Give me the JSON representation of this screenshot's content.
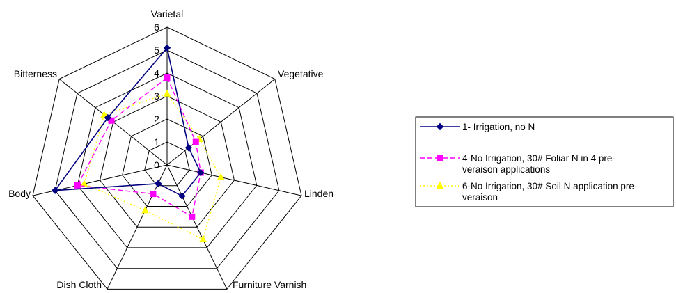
{
  "chart_data": {
    "type": "radar",
    "title": "",
    "axes": [
      "Varietal",
      "Vegetative",
      "Linden",
      "Furniture Varnish",
      "Dish Cloth",
      "Body",
      "Bitterness"
    ],
    "range": [
      0,
      6
    ],
    "ticks": [
      "0",
      "1",
      "2",
      "3",
      "4",
      "5",
      "6"
    ],
    "grid": true,
    "legend_position": "right",
    "series": [
      {
        "name": "1- Irrigation, no N",
        "values": [
          5.1,
          1.2,
          1.5,
          1.5,
          0.9,
          5.0,
          3.3
        ],
        "color": "#000080",
        "marker": "diamond",
        "dash": "solid"
      },
      {
        "name": "4-No Irrigation, 30# Foliar N in 4 pre-veraison applications",
        "values": [
          3.8,
          1.6,
          1.5,
          2.5,
          1.4,
          4.0,
          3.1
        ],
        "color": "#FF00FF",
        "marker": "square",
        "dash": "dashed"
      },
      {
        "name": "6-No Irrigation, 30# Soil N application pre-veraison",
        "values": [
          3.1,
          1.8,
          2.4,
          3.6,
          2.2,
          3.7,
          3.5
        ],
        "color": "#FFFF00",
        "marker": "triangle",
        "dash": "dotted"
      }
    ],
    "legend_lines": [
      [
        "1- Irrigation, no N"
      ],
      [
        "4-No Irrigation, 30# Foliar N in 4 pre-",
        "veraison applications"
      ],
      [
        "6-No Irrigation, 30# Soil N application pre-",
        "veraison"
      ]
    ]
  }
}
